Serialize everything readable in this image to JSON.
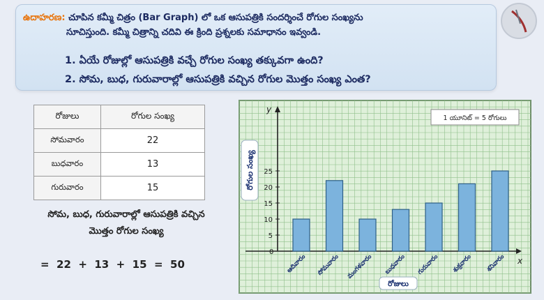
{
  "example": {
    "tag": "ఉదాహరణ:",
    "intro_line1": "చూపిన కమ్మీ చిత్రం (Bar Graph) లో ఒక ఆసుపత్రికి సందర్శించే రోగుల సంఖ్యను",
    "intro_line2": "సూచిస్తుంది. కమ్మీ చిత్రాన్ని చదివి ఈ క్రింది ప్రశ్నలకు సమాధానం ఇవ్వండి.",
    "question1": "1. ఏయే రోజుల్లో ఆసుపత్రికి వచ్చే రోగుల సంఖ్య తక్కువగా ఉంది?",
    "question2": "2. సోమ, బుధ, గురువారాల్లో ఆసుపత్రికి వచ్చిన రోగుల మొత్తం సంఖ్య ఎంత?"
  },
  "table": {
    "header_day": "రోజులు",
    "header_count": "రోగుల సంఖ్య",
    "rows": [
      {
        "day": "సోమవారం",
        "count": "22"
      },
      {
        "day": "బుధవారం",
        "count": "13"
      },
      {
        "day": "గురువారం",
        "count": "15"
      }
    ]
  },
  "summary": {
    "line1": "సోమ, బుధ, గురువారాల్లో ఆసుపత్రికి వచ్చిన",
    "line2": "మొత్తం రోగుల సంఖ్య",
    "equation": "=  22  +  13  +  15  =  50"
  },
  "chart_data": {
    "type": "bar",
    "categories": [
      "ఆదివారం",
      "సోమవారం",
      "మంగళవారం",
      "బుధవారం",
      "గురువారం",
      "శుక్రవారం",
      "శనివారం"
    ],
    "values": [
      10,
      22,
      10,
      13,
      15,
      21,
      25
    ],
    "xlabel": "రోజులు",
    "ylabel": "రోగుల సంఖ్య",
    "x_axis_letter": "x",
    "y_axis_letter": "y",
    "origin_label": "0",
    "yticks": [
      5,
      10,
      15,
      20,
      25
    ],
    "ylim": [
      0,
      30
    ],
    "scale_note": "1 యూనిట్ = 5 రోగులు",
    "grid": true,
    "colors": {
      "bar": "#7cb3dd",
      "bar_edge": "#2e5f86",
      "grid": "#8fbf8a",
      "background": "#dff0da"
    }
  }
}
